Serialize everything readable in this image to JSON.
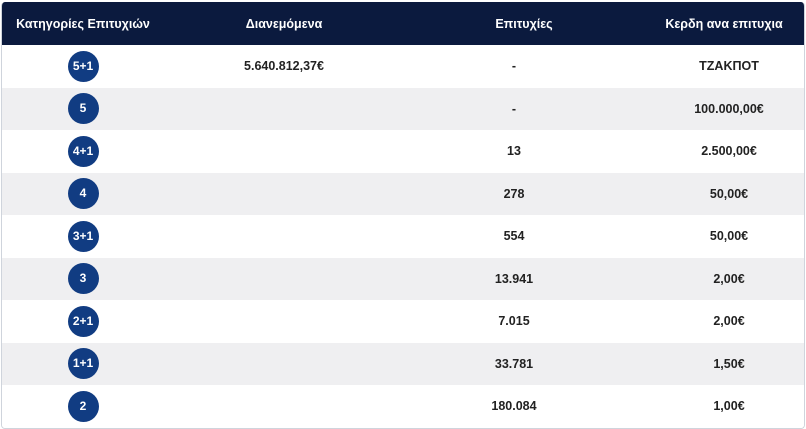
{
  "header": {
    "categories": "Κατηγορίες Επιτυχιών",
    "distributed": "Διανεμόμενα",
    "wins": "Επιτυχίες",
    "prize": "Κερδη ανα επιτυχια"
  },
  "rows": [
    {
      "category": "5+1",
      "distributed": "5.640.812,37€",
      "wins": "-",
      "prize": "ΤΖΑΚΠΟΤ"
    },
    {
      "category": "5",
      "distributed": "",
      "wins": "-",
      "prize": "100.000,00€"
    },
    {
      "category": "4+1",
      "distributed": "",
      "wins": "13",
      "prize": "2.500,00€"
    },
    {
      "category": "4",
      "distributed": "",
      "wins": "278",
      "prize": "50,00€"
    },
    {
      "category": "3+1",
      "distributed": "",
      "wins": "554",
      "prize": "50,00€"
    },
    {
      "category": "3",
      "distributed": "",
      "wins": "13.941",
      "prize": "2,00€"
    },
    {
      "category": "2+1",
      "distributed": "",
      "wins": "7.015",
      "prize": "2,00€"
    },
    {
      "category": "1+1",
      "distributed": "",
      "wins": "33.781",
      "prize": "1,50€"
    },
    {
      "category": "2",
      "distributed": "",
      "wins": "180.084",
      "prize": "1,00€"
    }
  ],
  "colors": {
    "header_bg": "#0b1a3e",
    "badge_bg": "#113c82",
    "stripe_bg": "#efeff1"
  }
}
